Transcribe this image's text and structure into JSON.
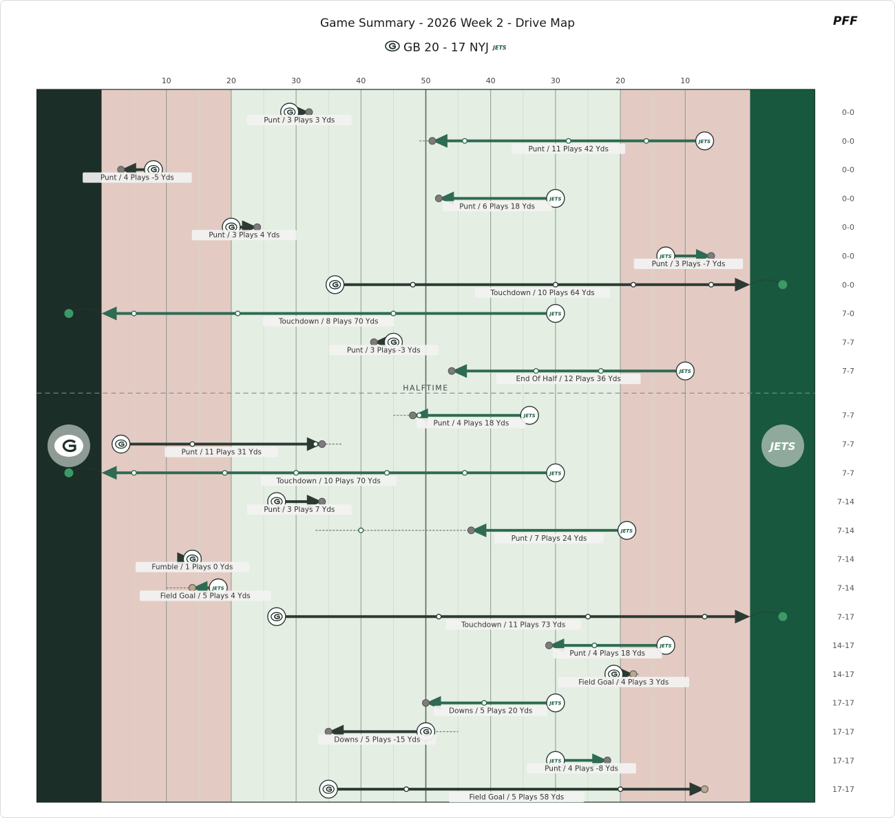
{
  "header": {
    "title": "Game Summary - 2026 Week 2 - Drive Map",
    "score": "GB 20 - 17 NYJ",
    "brand": "PFF"
  },
  "colors": {
    "gb_drive": "#2b3a33",
    "nyj_drive": "#2e6b52",
    "gb_endzone": "#1b2e27",
    "nyj_endzone": "#17583f",
    "redzone": "#e3cbc4",
    "midfield": "#e4eee3"
  },
  "chart_data": {
    "type": "drive-map",
    "x_axis": {
      "ticks": [
        "10",
        "20",
        "30",
        "40",
        "50",
        "40",
        "30",
        "20",
        "10"
      ],
      "tick_positions": [
        10,
        20,
        30,
        40,
        50,
        60,
        70,
        80,
        90
      ],
      "range": [
        0,
        100
      ]
    },
    "halftime_label": "HALFTIME",
    "halftime_after_drive": 10,
    "drives": [
      {
        "team": "GB",
        "start": 29,
        "end": 32,
        "result": "Punt",
        "label": "Punt / 3 Plays 3 Yds",
        "score": "0-0",
        "plays": []
      },
      {
        "team": "NYJ",
        "start": 93,
        "end": 51,
        "result": "Punt",
        "label": "Punt / 11 Plays 42 Yds",
        "score": "0-0",
        "plays": [
          84,
          72,
          56
        ],
        "penalty": [
          49,
          51
        ]
      },
      {
        "team": "GB",
        "start": 8,
        "end": 3,
        "result": "Punt",
        "label": "Punt / 4 Plays -5 Yds",
        "score": "0-0",
        "plays": []
      },
      {
        "team": "NYJ",
        "start": 70,
        "end": 52,
        "result": "Punt",
        "label": "Punt / 6 Plays 18 Yds",
        "score": "0-0",
        "plays": []
      },
      {
        "team": "GB",
        "start": 20,
        "end": 24,
        "result": "Punt",
        "label": "Punt / 3 Plays 4 Yds",
        "score": "0-0",
        "plays": []
      },
      {
        "team": "NYJ",
        "start": 87,
        "end": 94,
        "result": "Punt",
        "label": "Punt / 3 Plays -7 Yds",
        "score": "0-0",
        "plays": []
      },
      {
        "team": "GB",
        "start": 36,
        "end": 100,
        "result": "Touchdown",
        "label": "Touchdown / 10 Plays 64 Yds",
        "score": "0-0",
        "plays": [
          48,
          70,
          82,
          94
        ]
      },
      {
        "team": "NYJ",
        "start": 70,
        "end": 0,
        "result": "Touchdown",
        "label": "Touchdown / 8 Plays 70 Yds",
        "score": "7-0",
        "plays": [
          45,
          21,
          5
        ]
      },
      {
        "team": "GB",
        "start": 45,
        "end": 42,
        "result": "Punt",
        "label": "Punt / 3 Plays -3 Yds",
        "score": "7-7",
        "plays": []
      },
      {
        "team": "NYJ",
        "start": 90,
        "end": 54,
        "result": "End Of Half",
        "label": "End Of Half / 12 Plays 36 Yds",
        "score": "7-7",
        "plays": [
          77,
          67
        ]
      },
      {
        "team": "NYJ",
        "start": 66,
        "end": 48,
        "result": "Punt",
        "label": "Punt / 4 Plays 18 Yds",
        "score": "7-7",
        "plays": [
          49
        ],
        "penalty": [
          45,
          48
        ]
      },
      {
        "team": "GB",
        "start": 3,
        "end": 34,
        "result": "Punt",
        "label": "Punt / 11 Plays 31 Yds",
        "score": "7-7",
        "plays": [
          14,
          33
        ],
        "penalty": [
          34,
          37
        ]
      },
      {
        "team": "NYJ",
        "start": 70,
        "end": 0,
        "result": "Touchdown",
        "label": "Touchdown / 10 Plays 70 Yds",
        "score": "7-7",
        "plays": [
          56,
          44,
          30,
          19,
          5
        ]
      },
      {
        "team": "GB",
        "start": 27,
        "end": 34,
        "result": "Punt",
        "label": "Punt / 3 Plays 7 Yds",
        "score": "7-14",
        "plays": []
      },
      {
        "team": "NYJ",
        "start": 81,
        "end": 57,
        "result": "Punt",
        "label": "Punt / 7 Plays 24 Yds",
        "score": "7-14",
        "plays": [
          40
        ],
        "penalty": [
          33,
          57
        ]
      },
      {
        "team": "GB",
        "start": 14,
        "end": 14,
        "result": "Fumble",
        "label": "Fumble / 1 Plays 0 Yds",
        "score": "7-14",
        "plays": []
      },
      {
        "team": "NYJ",
        "start": 18,
        "end": 14,
        "result": "Field Goal",
        "label": "Field Goal / 5 Plays 4 Yds",
        "score": "7-14",
        "plays": [],
        "penalty": [
          10,
          14
        ]
      },
      {
        "team": "GB",
        "start": 27,
        "end": 100,
        "result": "Touchdown",
        "label": "Touchdown / 11 Plays 73 Yds",
        "score": "7-17",
        "plays": [
          52,
          75,
          93
        ]
      },
      {
        "team": "NYJ",
        "start": 87,
        "end": 69,
        "result": "Punt",
        "label": "Punt / 4 Plays 18 Yds",
        "score": "14-17",
        "plays": [
          76
        ]
      },
      {
        "team": "GB",
        "start": 79,
        "end": 82,
        "result": "Field Goal",
        "label": "Field Goal / 4 Plays 3 Yds",
        "score": "14-17",
        "plays": [],
        "penalty": [
          82,
          83
        ]
      },
      {
        "team": "NYJ",
        "start": 70,
        "end": 50,
        "result": "Downs",
        "label": "Downs / 5 Plays 20 Yds",
        "score": "17-17",
        "plays": [
          59
        ]
      },
      {
        "team": "GB",
        "start": 50,
        "end": 35,
        "result": "Downs",
        "label": "Downs / 5 Plays -15 Yds",
        "score": "17-17",
        "plays": [],
        "penalty": [
          50,
          55
        ]
      },
      {
        "team": "NYJ",
        "start": 70,
        "end": 78,
        "result": "Punt",
        "label": "Punt / 4 Plays -8 Yds",
        "score": "17-17",
        "plays": []
      },
      {
        "team": "GB",
        "start": 35,
        "end": 93,
        "result": "Field Goal",
        "label": "Field Goal / 5 Plays 58 Yds",
        "score": "17-17",
        "plays": [
          47,
          80
        ]
      }
    ]
  }
}
